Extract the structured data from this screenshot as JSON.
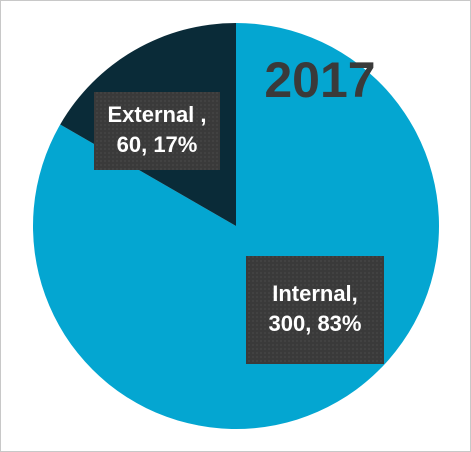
{
  "chart_data": {
    "type": "pie",
    "title": "2017",
    "values": [
      300,
      60
    ],
    "value_labels": [
      [
        "Internal,",
        "300, 83%"
      ],
      [
        "External ,",
        "60, 17%"
      ]
    ],
    "colors": [
      "#04a6d1",
      "#0a2b38"
    ]
  }
}
